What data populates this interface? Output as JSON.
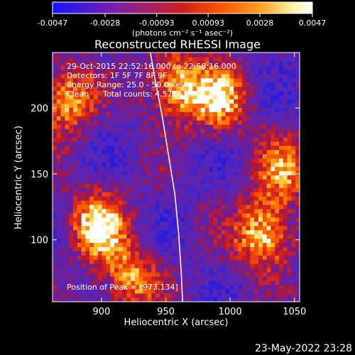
{
  "chart_data": {
    "type": "heatmap",
    "title": "Reconstructed RHESSI Image",
    "xlabel": "Heliocentric X (arcsec)",
    "ylabel": "Heliocentric Y (arcsec)",
    "xlim": [
      862,
      1054
    ],
    "ylim": [
      53,
      242
    ],
    "x_ticks": [
      900,
      950,
      1000,
      1050
    ],
    "y_ticks": [
      100,
      150,
      200
    ],
    "colorbar": {
      "min": -0.0047,
      "max": 0.0047,
      "ticks": [
        -0.0047,
        -0.0028,
        -0.00093,
        0.00093,
        0.0028,
        0.0047
      ],
      "tick_labels": [
        "-0.0047",
        "-0.0028",
        "-0.00093",
        "0.00093",
        "0.0028",
        "0.0047"
      ],
      "unit_label": "(photons cm⁻² s⁻¹ asec⁻²)",
      "colors": [
        "#1515ff",
        "#7f1fa8",
        "#d0201e",
        "#ff5500",
        "#ffa020",
        "#fff0a0",
        "#ffffff"
      ]
    },
    "annotations": {
      "time_range": "29-Oct-2015 22:52:16.000 to 22:58:16.000",
      "detectors": "Detectors: 1F 5F 7F 8F 9F",
      "energy_range": "Energy Range: 25.0 - 50.0 keV",
      "clean": "Clean",
      "total_counts": "Total counts: 4.57E+03",
      "peak": "Position of Peak = [973,134]"
    },
    "limb_curve": [
      [
        938,
        242
      ],
      [
        942,
        220
      ],
      [
        947,
        195
      ],
      [
        952,
        165
      ],
      [
        957,
        135
      ],
      [
        960,
        105
      ],
      [
        962,
        75
      ],
      [
        963,
        53
      ]
    ],
    "bright_regions": [
      {
        "x": 895,
        "y": 110,
        "intensity": 0.0045
      },
      {
        "x": 870,
        "y": 205,
        "intensity": 0.004
      },
      {
        "x": 1025,
        "y": 103,
        "intensity": 0.0047
      },
      {
        "x": 955,
        "y": 215,
        "intensity": 0.0042
      },
      {
        "x": 990,
        "y": 205,
        "intensity": 0.0038
      },
      {
        "x": 920,
        "y": 70,
        "intensity": 0.0035
      },
      {
        "x": 1040,
        "y": 150,
        "intensity": 0.003
      }
    ],
    "peak_position": [
      973,
      134
    ]
  },
  "footer": {
    "date": "23-May-2022 23:28"
  }
}
